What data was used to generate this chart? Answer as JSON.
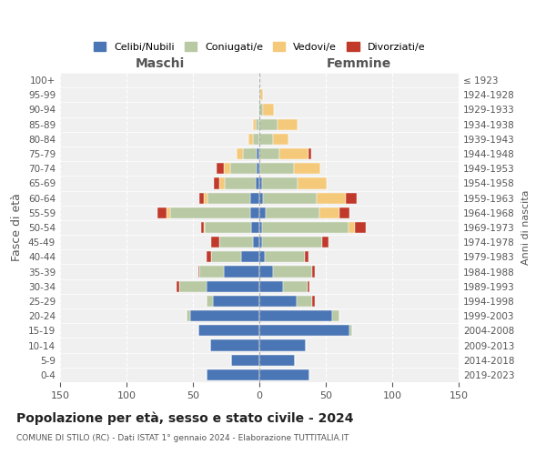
{
  "age_groups": [
    "0-4",
    "5-9",
    "10-14",
    "15-19",
    "20-24",
    "25-29",
    "30-34",
    "35-39",
    "40-44",
    "45-49",
    "50-54",
    "55-59",
    "60-64",
    "65-69",
    "70-74",
    "75-79",
    "80-84",
    "85-89",
    "90-94",
    "95-99",
    "100+"
  ],
  "birth_years": [
    "2019-2023",
    "2014-2018",
    "2009-2013",
    "2004-2008",
    "1999-2003",
    "1994-1998",
    "1989-1993",
    "1984-1988",
    "1979-1983",
    "1974-1978",
    "1969-1973",
    "1964-1968",
    "1959-1963",
    "1954-1958",
    "1949-1953",
    "1944-1948",
    "1939-1943",
    "1934-1938",
    "1929-1933",
    "1924-1928",
    "≤ 1923"
  ],
  "males": {
    "celibi": [
      40,
      21,
      37,
      46,
      52,
      35,
      40,
      27,
      14,
      5,
      6,
      7,
      7,
      3,
      2,
      2,
      0,
      0,
      0,
      0,
      0
    ],
    "coniugati": [
      0,
      0,
      0,
      0,
      3,
      5,
      20,
      18,
      22,
      25,
      35,
      60,
      32,
      23,
      20,
      10,
      5,
      3,
      1,
      0,
      0
    ],
    "vedovi": [
      0,
      0,
      0,
      0,
      0,
      0,
      0,
      0,
      0,
      0,
      1,
      3,
      3,
      4,
      5,
      5,
      3,
      2,
      0,
      0,
      0
    ],
    "divorziati": [
      0,
      0,
      0,
      0,
      0,
      0,
      2,
      1,
      4,
      6,
      2,
      7,
      3,
      4,
      5,
      0,
      0,
      0,
      0,
      0,
      0
    ]
  },
  "females": {
    "nubili": [
      38,
      27,
      35,
      68,
      55,
      28,
      18,
      10,
      4,
      2,
      2,
      5,
      3,
      2,
      1,
      0,
      0,
      0,
      0,
      0,
      0
    ],
    "coniugate": [
      0,
      0,
      0,
      2,
      5,
      12,
      18,
      30,
      30,
      45,
      65,
      40,
      40,
      27,
      25,
      15,
      10,
      14,
      3,
      1,
      0
    ],
    "vedove": [
      0,
      0,
      0,
      0,
      0,
      0,
      0,
      0,
      0,
      0,
      5,
      15,
      22,
      22,
      20,
      22,
      12,
      15,
      8,
      2,
      0
    ],
    "divorziate": [
      0,
      0,
      0,
      0,
      0,
      2,
      2,
      2,
      3,
      5,
      8,
      8,
      8,
      0,
      0,
      2,
      0,
      0,
      0,
      0,
      0
    ]
  },
  "colors": {
    "celibi": "#4b76b5",
    "coniugati": "#b8c9a3",
    "vedovi": "#f5c97a",
    "divorziati": "#c0392b"
  },
  "title": "Popolazione per età, sesso e stato civile - 2024",
  "subtitle": "COMUNE DI STILO (RC) - Dati ISTAT 1° gennaio 2024 - Elaborazione TUTTITALIA.IT",
  "xlabel_left": "Maschi",
  "xlabel_right": "Femmine",
  "ylabel_left": "Fasce di età",
  "ylabel_right": "Anni di nascita",
  "xlim": 150,
  "bg_color": "#f0f0f0",
  "grid_color": "#cccccc",
  "legend_labels": [
    "Celibi/Nubili",
    "Coniugati/e",
    "Vedovi/e",
    "Divorziati/e"
  ]
}
